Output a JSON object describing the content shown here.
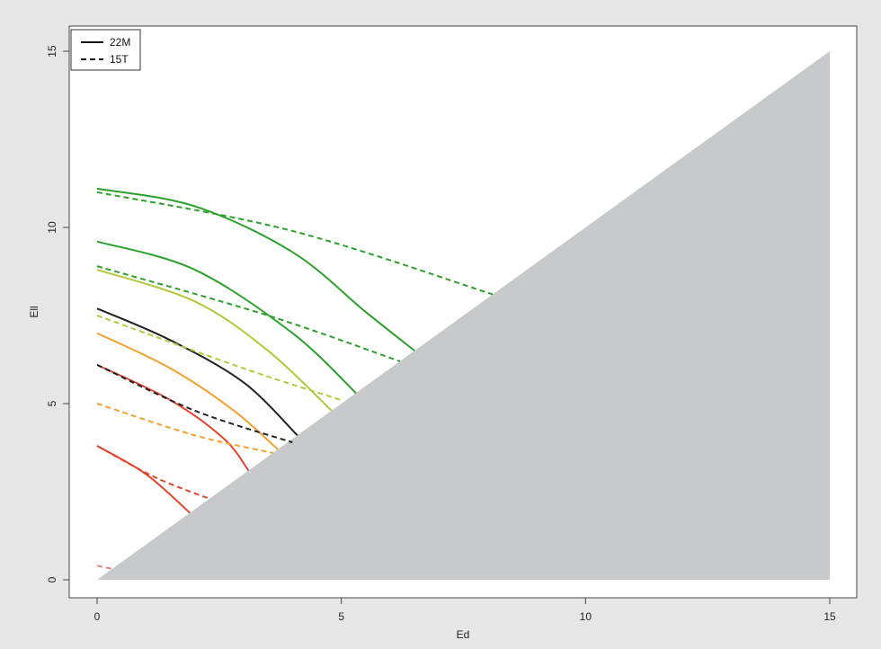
{
  "chart_data": {
    "type": "line",
    "title": "",
    "xlabel": "Ed",
    "ylabel": "Ell",
    "xlim": [
      0,
      15
    ],
    "ylim": [
      0,
      15
    ],
    "x_ticks": [
      "0",
      "5",
      "10",
      "15"
    ],
    "y_ticks": [
      "0",
      "5",
      "10",
      "15"
    ],
    "grid": false,
    "legend": {
      "placement": "top-left",
      "entries": [
        {
          "label": "22M",
          "style": "solid"
        },
        {
          "label": "15T",
          "style": "dashed"
        }
      ]
    },
    "shaded_region": {
      "description_points": [
        [
          0,
          0
        ],
        [
          15,
          15
        ],
        [
          15,
          0
        ]
      ],
      "color": "#c8c9cb"
    },
    "series": [
      {
        "style": "solid",
        "color": "#2ca02c",
        "points": [
          [
            0,
            11.1
          ],
          [
            2,
            10.6
          ],
          [
            4,
            9.3
          ],
          [
            5.5,
            7.6
          ],
          [
            6.5,
            6.5
          ]
        ]
      },
      {
        "style": "solid",
        "color": "#2ca02c",
        "points": [
          [
            0,
            9.6
          ],
          [
            2,
            8.8
          ],
          [
            4,
            7.0
          ],
          [
            5.3,
            5.3
          ]
        ]
      },
      {
        "style": "solid",
        "color": "#b5c83c",
        "points": [
          [
            0,
            8.8
          ],
          [
            2,
            7.9
          ],
          [
            3.5,
            6.5
          ],
          [
            4.8,
            4.8
          ]
        ]
      },
      {
        "style": "solid",
        "color": "#222222",
        "points": [
          [
            0,
            7.7
          ],
          [
            1.5,
            6.8
          ],
          [
            3,
            5.6
          ],
          [
            4.1,
            4.1
          ]
        ]
      },
      {
        "style": "solid",
        "color": "#f5a030",
        "points": [
          [
            0,
            7.0
          ],
          [
            1.5,
            6.0
          ],
          [
            2.8,
            4.8
          ],
          [
            3.7,
            3.7
          ]
        ]
      },
      {
        "style": "solid",
        "color": "#e0452e",
        "points": [
          [
            0,
            6.1
          ],
          [
            1.5,
            5.1
          ],
          [
            2.6,
            4.0
          ],
          [
            3.1,
            3.1
          ]
        ]
      },
      {
        "style": "solid",
        "color": "#e0452e",
        "points": [
          [
            0,
            3.8
          ],
          [
            1.0,
            3.0
          ],
          [
            1.9,
            1.9
          ]
        ]
      },
      {
        "style": "dashed",
        "color": "#2ca02c",
        "points": [
          [
            0,
            11.0
          ],
          [
            4,
            9.9
          ],
          [
            8.1,
            8.1
          ]
        ]
      },
      {
        "style": "dashed",
        "color": "#2ca02c",
        "points": [
          [
            0,
            8.9
          ],
          [
            3.5,
            7.5
          ],
          [
            6.2,
            6.2
          ]
        ]
      },
      {
        "style": "dashed",
        "color": "#b5c83c",
        "points": [
          [
            0,
            7.5
          ],
          [
            3,
            6.0
          ],
          [
            5,
            5.1
          ]
        ]
      },
      {
        "style": "dashed",
        "color": "#222222",
        "points": [
          [
            0,
            6.1
          ],
          [
            2,
            4.8
          ],
          [
            4,
            3.9
          ]
        ]
      },
      {
        "style": "dashed",
        "color": "#f5a030",
        "points": [
          [
            0,
            5.0
          ],
          [
            2,
            4.1
          ],
          [
            3.6,
            3.6
          ]
        ]
      },
      {
        "style": "dashed",
        "color": "#e0452e",
        "points": [
          [
            0,
            3.8
          ],
          [
            1.2,
            2.9
          ],
          [
            2.3,
            2.3
          ]
        ]
      },
      {
        "style": "dashed",
        "color": "#f08080",
        "points": [
          [
            0,
            0.4
          ],
          [
            0.35,
            0.3
          ]
        ]
      }
    ]
  }
}
